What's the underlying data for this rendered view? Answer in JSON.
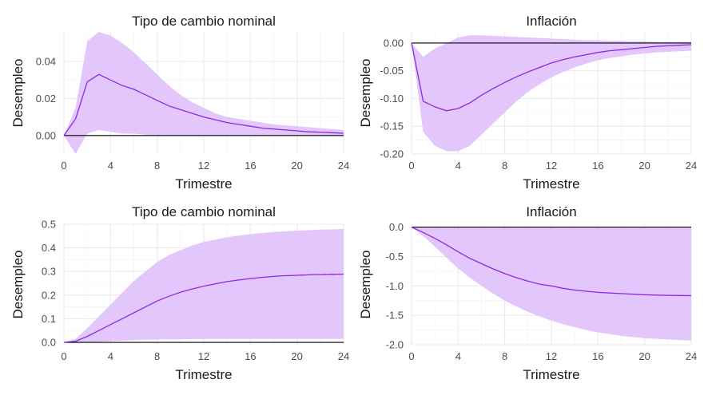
{
  "colors": {
    "band": "#e3c6fb",
    "line": "#8a2be2",
    "zero_line": "#000000",
    "grid": "#ebebeb"
  },
  "chart_data": [
    {
      "type": "area",
      "title": "Tipo de cambio nominal",
      "xlabel": "Trimestre",
      "ylabel": "Desempleo",
      "xlim": [
        0,
        24
      ],
      "ylim": [
        -0.01,
        0.056
      ],
      "x_ticks": [
        "0",
        "4",
        "8",
        "12",
        "16",
        "20",
        "24"
      ],
      "y_ticks": [
        0,
        0.02,
        0.04
      ],
      "y_tick_labels": [
        "0.00",
        "0.02",
        "0.04"
      ],
      "grid": true,
      "x": [
        0,
        1,
        2,
        3,
        4,
        5,
        6,
        7,
        8,
        9,
        10,
        11,
        12,
        13,
        14,
        15,
        16,
        17,
        18,
        19,
        20,
        21,
        22,
        23,
        24
      ],
      "series": [
        {
          "values": [
            0,
            0.009,
            0.029,
            0.033,
            0.03,
            0.027,
            0.025,
            0.022,
            0.019,
            0.016,
            0.014,
            0.012,
            0.01,
            0.0085,
            0.007,
            0.006,
            0.005,
            0.004,
            0.0035,
            0.003,
            0.0025,
            0.002,
            0.0018,
            0.0015,
            0.0012
          ]
        }
      ],
      "band_upper": [
        0,
        0.015,
        0.051,
        0.056,
        0.054,
        0.05,
        0.045,
        0.039,
        0.033,
        0.027,
        0.022,
        0.018,
        0.015,
        0.012,
        0.01,
        0.009,
        0.008,
        0.007,
        0.006,
        0.0055,
        0.005,
        0.0045,
        0.004,
        0.0035,
        0.003
      ],
      "band_lower": [
        0,
        -0.01,
        0.001,
        0.003,
        0.002,
        0.001,
        0.001,
        0.0005,
        0.0003,
        0.0002,
        0.0001,
        0.0001,
        0,
        0,
        0,
        0,
        0,
        0,
        0,
        0,
        0,
        0,
        0,
        0,
        0
      ]
    },
    {
      "type": "area",
      "title": "Inflación",
      "xlabel": "Trimestre",
      "ylabel": "Desempleo",
      "xlim": [
        0,
        24
      ],
      "ylim": [
        -0.2,
        0.02
      ],
      "x_ticks": [
        "0",
        "4",
        "8",
        "12",
        "16",
        "20",
        "24"
      ],
      "y_ticks": [
        0,
        -0.05,
        -0.1,
        -0.15,
        -0.2
      ],
      "y_tick_labels": [
        "0.00",
        "-0.05",
        "-0.10",
        "-0.15",
        "-0.20"
      ],
      "grid": true,
      "x": [
        0,
        1,
        2,
        3,
        4,
        5,
        6,
        7,
        8,
        9,
        10,
        11,
        12,
        13,
        14,
        15,
        16,
        17,
        18,
        19,
        20,
        21,
        22,
        23,
        24
      ],
      "series": [
        {
          "values": [
            0,
            -0.105,
            -0.115,
            -0.122,
            -0.118,
            -0.108,
            -0.094,
            -0.082,
            -0.071,
            -0.061,
            -0.052,
            -0.044,
            -0.036,
            -0.03,
            -0.025,
            -0.021,
            -0.017,
            -0.014,
            -0.012,
            -0.01,
            -0.008,
            -0.006,
            -0.005,
            -0.004,
            -0.003
          ]
        }
      ],
      "band_upper": [
        0,
        -0.025,
        -0.01,
        0.0,
        0.01,
        0.014,
        0.014,
        0.013,
        0.012,
        0.011,
        0.01,
        0.009,
        0.008,
        0.007,
        0.006,
        0.005,
        0.005,
        0.004,
        0.004,
        0.003,
        0.003,
        0.002,
        0.002,
        0.002,
        0.002
      ],
      "band_lower": [
        0,
        -0.16,
        -0.185,
        -0.195,
        -0.195,
        -0.185,
        -0.165,
        -0.145,
        -0.125,
        -0.105,
        -0.088,
        -0.074,
        -0.062,
        -0.052,
        -0.044,
        -0.037,
        -0.031,
        -0.027,
        -0.024,
        -0.021,
        -0.019,
        -0.017,
        -0.016,
        -0.015,
        -0.014
      ]
    },
    {
      "type": "area",
      "title": "Tipo de cambio nominal",
      "xlabel": "Trimestre",
      "ylabel": "Desempleo",
      "xlim": [
        0,
        24
      ],
      "ylim": [
        -0.01,
        0.5
      ],
      "x_ticks": [
        "0",
        "4",
        "8",
        "12",
        "16",
        "20",
        "24"
      ],
      "y_ticks": [
        0,
        0.1,
        0.2,
        0.3,
        0.4,
        0.5
      ],
      "y_tick_labels": [
        "0.0",
        "0.1",
        "0.2",
        "0.3",
        "0.4",
        "0.5"
      ],
      "grid": true,
      "x": [
        0,
        1,
        2,
        3,
        4,
        5,
        6,
        7,
        8,
        9,
        10,
        11,
        12,
        13,
        14,
        15,
        16,
        17,
        18,
        19,
        20,
        21,
        22,
        23,
        24
      ],
      "series": [
        {
          "values": [
            0,
            0.005,
            0.025,
            0.05,
            0.075,
            0.1,
            0.125,
            0.15,
            0.175,
            0.195,
            0.212,
            0.226,
            0.238,
            0.248,
            0.257,
            0.264,
            0.27,
            0.275,
            0.279,
            0.282,
            0.284,
            0.286,
            0.287,
            0.288,
            0.289
          ]
        }
      ],
      "band_upper": [
        0,
        0.015,
        0.06,
        0.11,
        0.16,
        0.21,
        0.26,
        0.3,
        0.34,
        0.37,
        0.39,
        0.41,
        0.425,
        0.435,
        0.445,
        0.452,
        0.458,
        0.463,
        0.467,
        0.47,
        0.473,
        0.475,
        0.477,
        0.478,
        0.48
      ],
      "band_lower": [
        0,
        -0.003,
        0.0,
        0.002,
        0.005,
        0.008,
        0.01,
        0.011,
        0.012,
        0.013,
        0.013,
        0.014,
        0.014,
        0.015,
        0.015,
        0.015,
        0.015,
        0.015,
        0.015,
        0.015,
        0.015,
        0.015,
        0.015,
        0.015,
        0.015
      ]
    },
    {
      "type": "area",
      "title": "Inflación",
      "xlabel": "Trimestre",
      "ylabel": "Desempleo",
      "xlim": [
        0,
        24
      ],
      "ylim": [
        -2.0,
        0.05
      ],
      "x_ticks": [
        "0",
        "4",
        "8",
        "12",
        "16",
        "20",
        "24"
      ],
      "y_ticks": [
        0,
        -0.5,
        -1.0,
        -1.5,
        -2.0
      ],
      "y_tick_labels": [
        "0.0",
        "-0.5",
        "-1.0",
        "-1.5",
        "-2.0"
      ],
      "grid": true,
      "x": [
        0,
        1,
        2,
        3,
        4,
        5,
        6,
        7,
        8,
        9,
        10,
        11,
        12,
        13,
        14,
        15,
        16,
        17,
        18,
        19,
        20,
        21,
        22,
        23,
        24
      ],
      "series": [
        {
          "values": [
            0,
            -0.09,
            -0.19,
            -0.3,
            -0.42,
            -0.53,
            -0.62,
            -0.71,
            -0.79,
            -0.86,
            -0.92,
            -0.97,
            -1.0,
            -1.04,
            -1.07,
            -1.09,
            -1.11,
            -1.12,
            -1.13,
            -1.14,
            -1.15,
            -1.155,
            -1.16,
            -1.163,
            -1.165
          ]
        }
      ],
      "band_upper": [
        0,
        0,
        0,
        0,
        0,
        0,
        0,
        0,
        0,
        0,
        0,
        0,
        0,
        0,
        0,
        0,
        0,
        0,
        0,
        0,
        0,
        0,
        0,
        0,
        0
      ],
      "band_lower": [
        0,
        -0.15,
        -0.33,
        -0.52,
        -0.7,
        -0.86,
        -1.0,
        -1.13,
        -1.25,
        -1.35,
        -1.44,
        -1.52,
        -1.59,
        -1.65,
        -1.7,
        -1.75,
        -1.79,
        -1.82,
        -1.85,
        -1.87,
        -1.89,
        -1.9,
        -1.91,
        -1.92,
        -1.93
      ]
    }
  ]
}
